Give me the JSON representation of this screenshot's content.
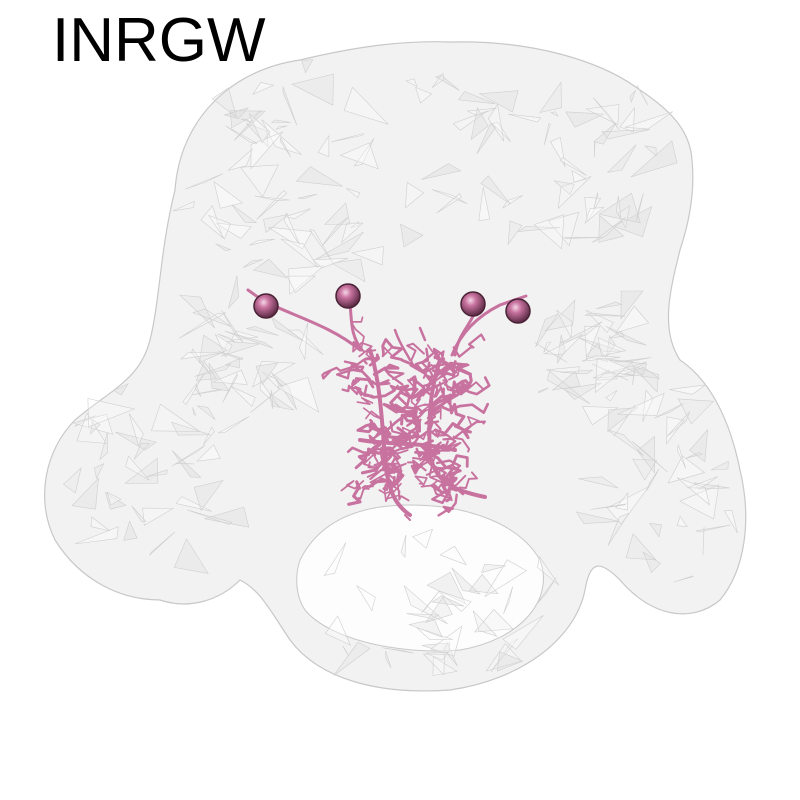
{
  "title": "INRGW",
  "colors": {
    "background": "#ffffff",
    "mesh_fill": "#eeeeee",
    "mesh_edge": "#c8c8c8",
    "neuron": "#c8729f",
    "soma": "#b05c8a"
  },
  "soma_count": 4
}
